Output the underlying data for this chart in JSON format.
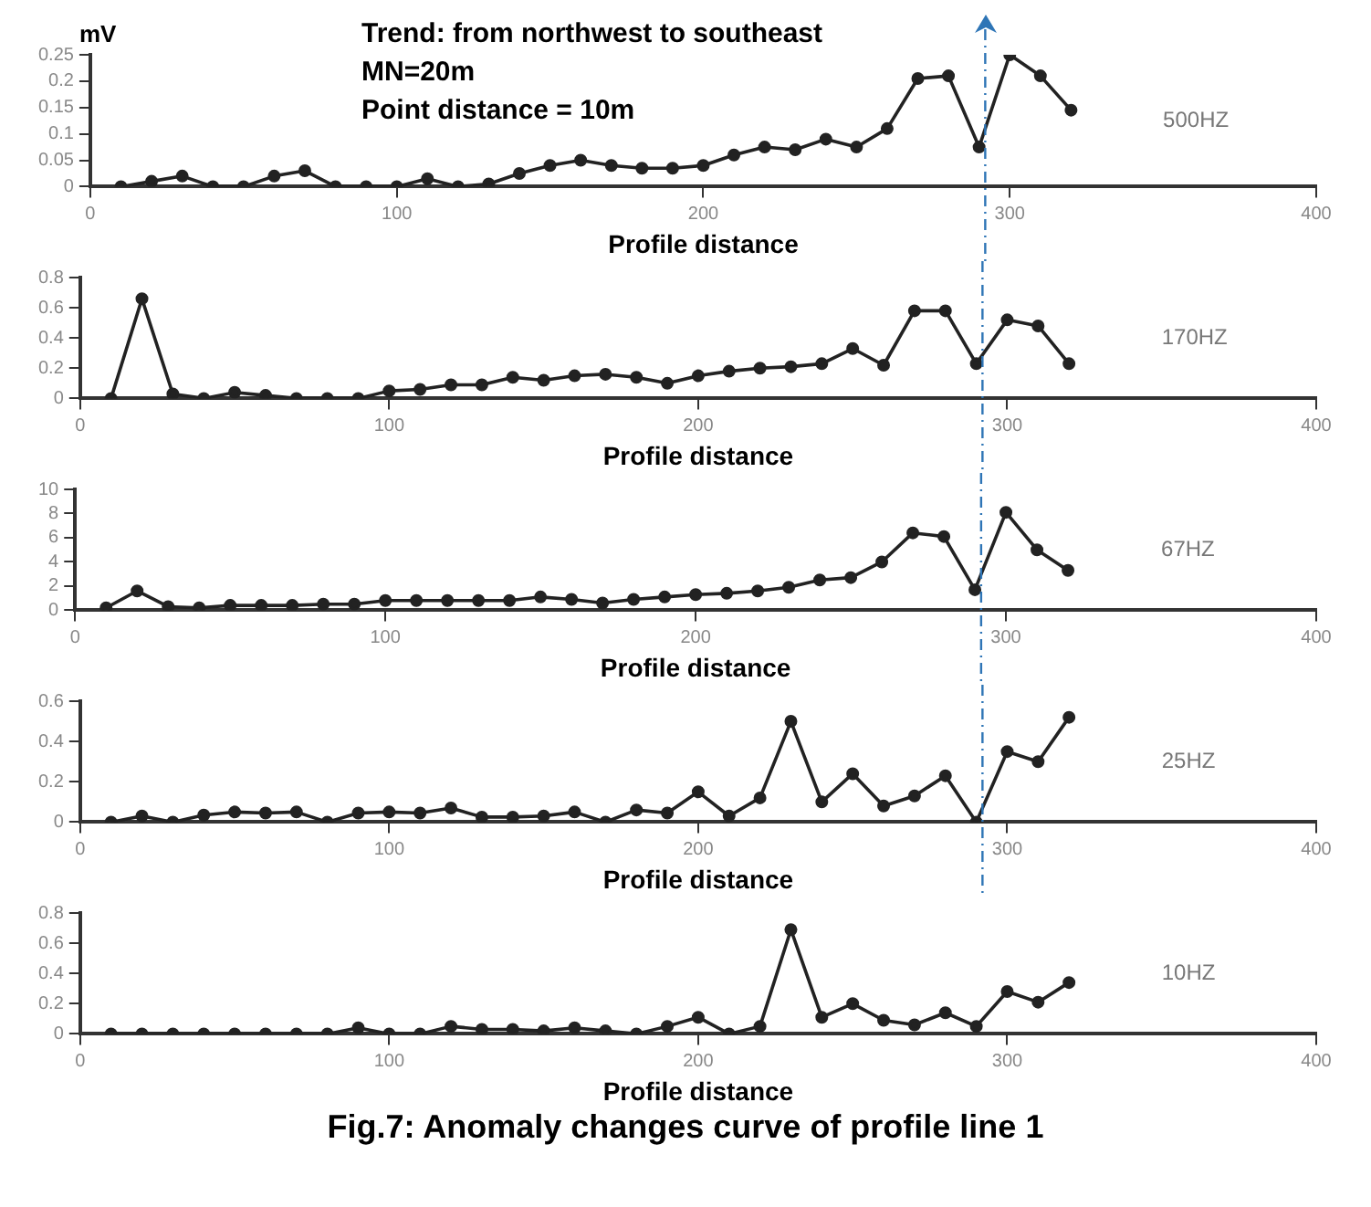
{
  "chart_data": [
    {
      "type": "line",
      "ylabel": "mV",
      "xlabel": "Profile distance",
      "xlim": [
        0,
        400
      ],
      "xticks": [
        0,
        100,
        200,
        300,
        400
      ],
      "ylim": [
        0,
        0.25
      ],
      "yticks": [
        0,
        0.05,
        0.1,
        0.15,
        0.2,
        0.25
      ],
      "grid": false,
      "legend": false,
      "marker": "circle",
      "line_style": "solid",
      "x": [
        10,
        20,
        30,
        40,
        50,
        60,
        70,
        80,
        90,
        100,
        110,
        120,
        130,
        140,
        150,
        160,
        170,
        180,
        190,
        200,
        210,
        220,
        230,
        240,
        250,
        260,
        270,
        280,
        290,
        300,
        310,
        320
      ],
      "series": [
        {
          "color": "#222222",
          "values": [
            0,
            0.01,
            0.02,
            0,
            0,
            0.02,
            0.03,
            0,
            0,
            0,
            0.015,
            0,
            0.005,
            0.025,
            0.04,
            0.05,
            0.04,
            0.035,
            0.035,
            0.04,
            0.06,
            0.075,
            0.07,
            0.09,
            0.075,
            0.11,
            0.205,
            0.21,
            0.075,
            0.25,
            0.21,
            0.145
          ]
        }
      ],
      "ref_lines": [
        {
          "axis": "x",
          "value": 292,
          "color": "#2e75b6",
          "line_style": "dashed"
        }
      ],
      "annotations": [
        "500HZ",
        "Trend: from northwest to southeast",
        "MN=20m",
        "Point distance = 10m"
      ]
    },
    {
      "type": "line",
      "xlabel": "Profile distance",
      "xlim": [
        0,
        400
      ],
      "xticks": [
        0,
        100,
        200,
        300,
        400
      ],
      "ylim": [
        0,
        0.8
      ],
      "yticks": [
        0,
        0.2,
        0.4,
        0.6,
        0.8
      ],
      "grid": false,
      "legend": false,
      "marker": "circle",
      "line_style": "solid",
      "x": [
        10,
        20,
        30,
        40,
        50,
        60,
        70,
        80,
        90,
        100,
        110,
        120,
        130,
        140,
        150,
        160,
        170,
        180,
        190,
        200,
        210,
        220,
        230,
        240,
        250,
        260,
        270,
        280,
        290,
        300,
        310,
        320
      ],
      "series": [
        {
          "color": "#222222",
          "values": [
            0,
            0.66,
            0.03,
            0,
            0.04,
            0.02,
            0,
            0,
            0,
            0.05,
            0.06,
            0.09,
            0.09,
            0.14,
            0.12,
            0.15,
            0.16,
            0.14,
            0.1,
            0.15,
            0.18,
            0.2,
            0.21,
            0.23,
            0.33,
            0.22,
            0.58,
            0.58,
            0.23,
            0.52,
            0.48,
            0.23
          ]
        }
      ],
      "ref_lines": [
        {
          "axis": "x",
          "value": 292,
          "color": "#2e75b6",
          "line_style": "dashed"
        }
      ],
      "annotations": [
        "170HZ"
      ]
    },
    {
      "type": "line",
      "xlabel": "Profile distance",
      "xlim": [
        0,
        400
      ],
      "xticks": [
        0,
        100,
        200,
        300,
        400
      ],
      "ylim": [
        0,
        10
      ],
      "yticks": [
        0,
        2,
        4,
        6,
        8,
        10
      ],
      "grid": false,
      "legend": false,
      "marker": "circle",
      "line_style": "solid",
      "x": [
        10,
        20,
        30,
        40,
        50,
        60,
        70,
        80,
        90,
        100,
        110,
        120,
        130,
        140,
        150,
        160,
        170,
        180,
        190,
        200,
        210,
        220,
        230,
        240,
        250,
        260,
        270,
        280,
        290,
        300,
        310,
        320
      ],
      "series": [
        {
          "color": "#222222",
          "values": [
            0.2,
            1.6,
            0.3,
            0.2,
            0.4,
            0.4,
            0.4,
            0.5,
            0.5,
            0.8,
            0.8,
            0.8,
            0.8,
            0.8,
            1.1,
            0.9,
            0.6,
            0.9,
            1.1,
            1.3,
            1.4,
            1.6,
            1.9,
            2.5,
            2.7,
            4,
            6.4,
            6.1,
            1.7,
            8.1,
            5,
            3.3
          ]
        }
      ],
      "ref_lines": [
        {
          "axis": "x",
          "value": 292,
          "color": "#2e75b6",
          "line_style": "dashed"
        }
      ],
      "annotations": [
        "67HZ"
      ]
    },
    {
      "type": "line",
      "xlabel": "Profile distance",
      "xlim": [
        0,
        400
      ],
      "xticks": [
        0,
        100,
        200,
        300,
        400
      ],
      "ylim": [
        0,
        0.6
      ],
      "yticks": [
        0,
        0.2,
        0.4,
        0.6
      ],
      "grid": false,
      "legend": false,
      "marker": "circle",
      "line_style": "solid",
      "x": [
        10,
        20,
        30,
        40,
        50,
        60,
        70,
        80,
        90,
        100,
        110,
        120,
        130,
        140,
        150,
        160,
        170,
        180,
        190,
        200,
        210,
        220,
        230,
        240,
        250,
        260,
        270,
        280,
        290,
        300,
        310,
        320
      ],
      "series": [
        {
          "color": "#222222",
          "values": [
            0,
            0.03,
            0,
            0.035,
            0.05,
            0.045,
            0.05,
            0,
            0.045,
            0.05,
            0.045,
            0.07,
            0.025,
            0.025,
            0.03,
            0.05,
            0,
            0.06,
            0.045,
            0.15,
            0.03,
            0.12,
            0.5,
            0.1,
            0.24,
            0.08,
            0.13,
            0.23,
            0,
            0.35,
            0.3,
            0.52
          ]
        }
      ],
      "ref_lines": [
        {
          "axis": "x",
          "value": 292,
          "color": "#2e75b6",
          "line_style": "dashed"
        }
      ],
      "annotations": [
        "25HZ"
      ]
    },
    {
      "type": "line",
      "xlabel": "Profile distance",
      "xlim": [
        0,
        400
      ],
      "xticks": [
        0,
        100,
        200,
        300,
        400
      ],
      "ylim": [
        0,
        0.8
      ],
      "yticks": [
        0,
        0.2,
        0.4,
        0.6,
        0.8
      ],
      "grid": false,
      "legend": false,
      "marker": "circle",
      "line_style": "solid",
      "x": [
        10,
        20,
        30,
        40,
        50,
        60,
        70,
        80,
        90,
        100,
        110,
        120,
        130,
        140,
        150,
        160,
        170,
        180,
        190,
        200,
        210,
        220,
        230,
        240,
        250,
        260,
        270,
        280,
        290,
        300,
        310,
        320
      ],
      "series": [
        {
          "color": "#222222",
          "values": [
            0,
            0,
            0,
            0,
            0,
            0,
            0,
            0,
            0.04,
            0,
            0,
            0.05,
            0.03,
            0.03,
            0.02,
            0.04,
            0.02,
            0,
            0.05,
            0.11,
            0,
            0.05,
            0.69,
            0.11,
            0.2,
            0.09,
            0.06,
            0.14,
            0.05,
            0.28,
            0.21,
            0.34
          ]
        }
      ],
      "annotations": [
        "10HZ",
        "Fig.7: Anomaly changes curve of profile line 1"
      ]
    }
  ]
}
